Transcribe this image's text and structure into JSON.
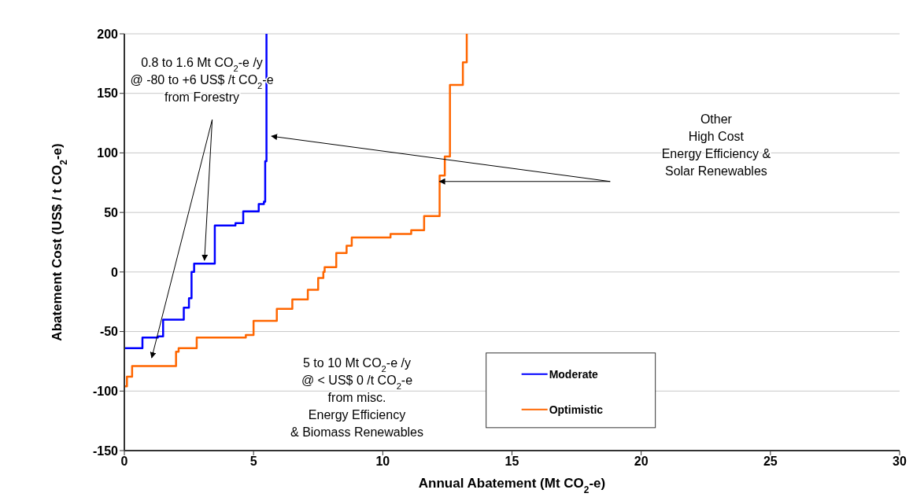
{
  "chart_data": {
    "type": "step",
    "xlabel": "Annual Abatement (Mt CO$_{2}$-e)",
    "ylabel": "Abatement Cost (US$ / t CO$_{2}$-e)",
    "xlim": [
      0,
      30
    ],
    "xticks": [
      0,
      5,
      10,
      15,
      20,
      25,
      30
    ],
    "ylim": [
      -150,
      200
    ],
    "yticks": [
      -150,
      -100,
      -50,
      0,
      50,
      100,
      150,
      200
    ],
    "grid": "y",
    "legend": "bottom",
    "series": [
      {
        "name": "Moderate",
        "color": "#0000ff",
        "x": [
          0,
          0.7,
          1.3,
          1.5,
          2.3,
          2.5,
          2.6,
          2.7,
          3.5,
          4.3,
          4.6,
          5.2,
          5.4,
          5.45,
          5.5
        ],
        "values": [
          -64,
          -55,
          -54,
          -40,
          -30,
          -22,
          0,
          7,
          39,
          41,
          51,
          57,
          59,
          93,
          200
        ]
      },
      {
        "name": "Optimistic",
        "color": "#ff6600",
        "x": [
          0,
          0.1,
          0.3,
          2.0,
          2.1,
          2.8,
          4.7,
          5.0,
          5.9,
          6.5,
          7.1,
          7.5,
          7.7,
          7.75,
          8.2,
          8.6,
          8.8,
          10.3,
          11.1,
          11.6,
          12.2,
          12.4,
          12.6,
          13.1,
          13.25
        ],
        "values": [
          -96,
          -88,
          -79,
          -67,
          -64,
          -55,
          -53,
          -41,
          -31,
          -23,
          -15,
          -5,
          0,
          4,
          16,
          22,
          29,
          32,
          35,
          47,
          81,
          97,
          157,
          176,
          200
        ]
      }
    ],
    "annotations": [
      "0.8 to 1.6 Mt CO$_{2}$-e /y\n@ -80 to +6 US$ /t CO$_{2}$-e\nfrom Forestry",
      "5 to 10 Mt CO$_{2}$-e /y\n@ < US$ 0 /t CO$_{2}$-e\nfrom misc.\nEnergy Efficiency\n& Biomass Renewables",
      "Other\nHigh Cost\nEnergy Efficiency &\nSolar Renewables"
    ]
  }
}
